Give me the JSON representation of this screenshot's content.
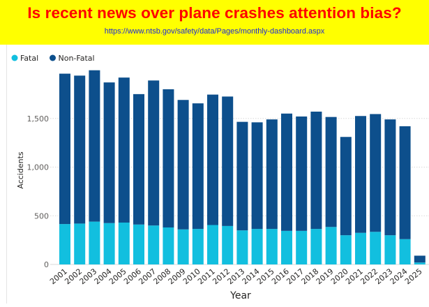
{
  "banner": {
    "title": "Is recent news over plane crashes attention bias?",
    "url": "https://www.ntsb.gov/safety/data/Pages/monthly-dashboard.aspx",
    "background_color": "#ffff00",
    "title_color": "#ff0000",
    "url_color": "#1e2bd6"
  },
  "chart_data": {
    "type": "bar",
    "stacked": true,
    "xlabel": "Year",
    "ylabel": "Accidents",
    "ylim": [
      0,
      2000
    ],
    "yticks": [
      0,
      500,
      1000,
      1500
    ],
    "ytick_labels": [
      "0",
      "500",
      "1,000",
      "1,500"
    ],
    "grid": true,
    "legend_position": "top-left",
    "categories": [
      "2001",
      "2002",
      "2003",
      "2004",
      "2005",
      "2006",
      "2007",
      "2008",
      "2009",
      "2010",
      "2011",
      "2012",
      "2013",
      "2014",
      "2015",
      "2016",
      "2017",
      "2018",
      "2019",
      "2020",
      "2021",
      "2022",
      "2023",
      "2024",
      "2025"
    ],
    "series": [
      {
        "name": "Fatal",
        "color": "#12bfdf",
        "values": [
          415,
          420,
          440,
          425,
          430,
          410,
          400,
          380,
          360,
          365,
          405,
          395,
          350,
          365,
          365,
          345,
          345,
          365,
          385,
          300,
          325,
          335,
          300,
          260,
          20
        ]
      },
      {
        "name": "Non-Fatal",
        "color": "#0d4f8c",
        "values": [
          1545,
          1520,
          1555,
          1445,
          1490,
          1340,
          1490,
          1420,
          1330,
          1290,
          1340,
          1330,
          1115,
          1095,
          1125,
          1205,
          1175,
          1205,
          1130,
          1010,
          1200,
          1210,
          1190,
          1160,
          70
        ]
      }
    ]
  }
}
